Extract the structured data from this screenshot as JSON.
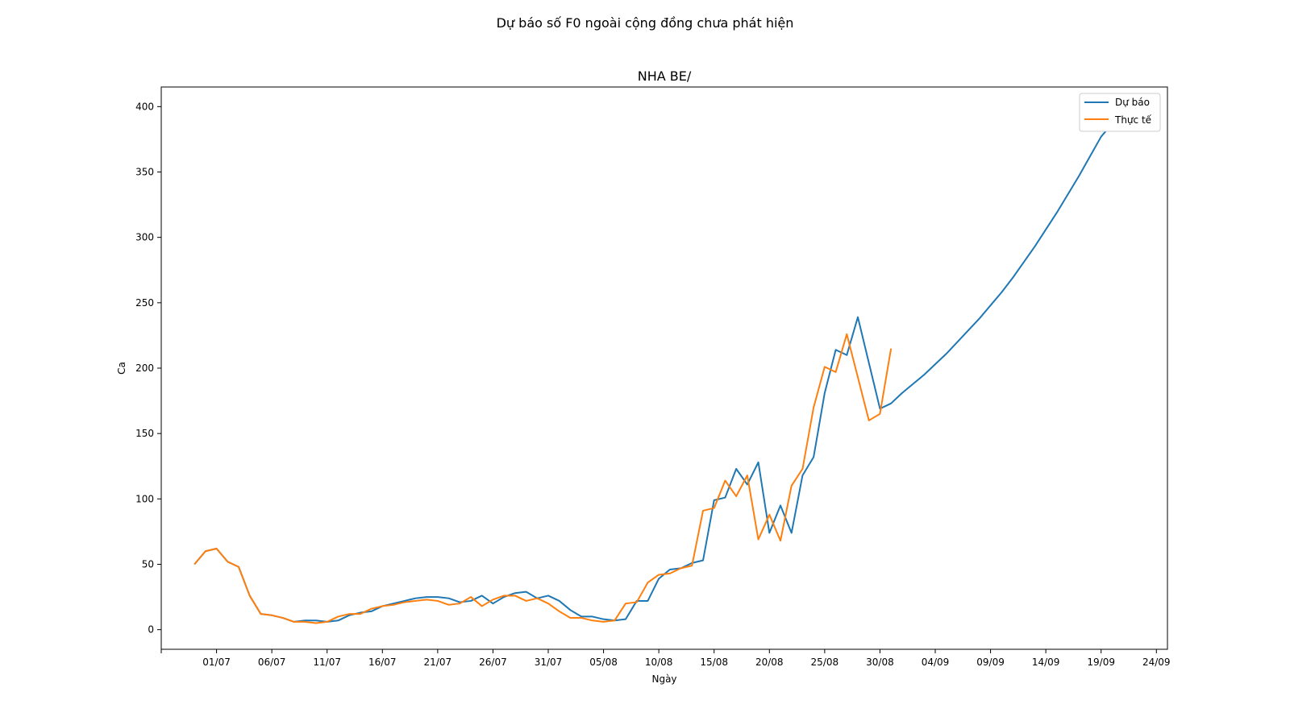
{
  "chart_data": {
    "type": "line",
    "suptitle": "Dự báo số F0 ngoài cộng đồng chưa phát hiện",
    "title": "NHA BE/",
    "xlabel": "Ngày",
    "ylabel": "Ca",
    "x_start": "2021-06-29",
    "xlim": [
      "2021-06-26",
      "2021-09-25"
    ],
    "ylim": [
      -15,
      415
    ],
    "x_ticks": [
      "01/07",
      "06/07",
      "11/07",
      "16/07",
      "21/07",
      "26/07",
      "31/07",
      "05/08",
      "10/08",
      "15/08",
      "20/08",
      "25/08",
      "30/08",
      "04/09",
      "09/09",
      "14/09",
      "19/09",
      "24/09"
    ],
    "x_tick_dates": [
      "2021-07-01",
      "2021-07-06",
      "2021-07-11",
      "2021-07-16",
      "2021-07-21",
      "2021-07-26",
      "2021-07-31",
      "2021-08-05",
      "2021-08-10",
      "2021-08-15",
      "2021-08-20",
      "2021-08-25",
      "2021-08-30",
      "2021-09-04",
      "2021-09-09",
      "2021-09-14",
      "2021-09-19",
      "2021-09-24"
    ],
    "y_ticks": [
      0,
      50,
      100,
      150,
      200,
      250,
      300,
      350,
      400
    ],
    "grid": false,
    "legend_position": "top-right",
    "series": [
      {
        "name": "Dự báo",
        "color": "#1f77b4",
        "values": [
          50,
          60,
          62,
          52,
          48,
          26,
          12,
          11,
          9,
          6,
          7,
          7,
          6,
          7,
          11,
          13,
          14,
          18,
          20,
          22,
          24,
          25,
          25,
          24,
          21,
          22,
          26,
          20,
          25,
          28,
          29,
          24,
          26,
          22,
          15,
          10,
          10,
          8,
          7,
          8,
          22,
          22,
          39,
          46,
          47,
          51,
          53,
          99,
          101,
          123,
          111,
          128,
          74,
          95,
          74,
          118,
          132,
          181,
          214,
          210,
          239,
          204,
          169,
          173,
          181,
          188,
          195,
          203,
          211,
          220,
          229,
          238,
          248,
          258,
          269,
          281,
          293,
          306,
          319,
          333,
          347,
          362,
          377,
          387
        ]
      },
      {
        "name": "Thực tế",
        "color": "#ff7f0e",
        "values": [
          50,
          60,
          62,
          52,
          48,
          26,
          12,
          11,
          9,
          6,
          6,
          5,
          6,
          10,
          12,
          12,
          16,
          18,
          19,
          21,
          22,
          23,
          22,
          19,
          20,
          25,
          18,
          23,
          26,
          26,
          22,
          24,
          20,
          14,
          9,
          9,
          7,
          6,
          7,
          20,
          21,
          36,
          42,
          43,
          47,
          49,
          91,
          93,
          114,
          102,
          118,
          69,
          88,
          68,
          110,
          123,
          170,
          201,
          197,
          226,
          193,
          160,
          165,
          215
        ]
      }
    ]
  }
}
